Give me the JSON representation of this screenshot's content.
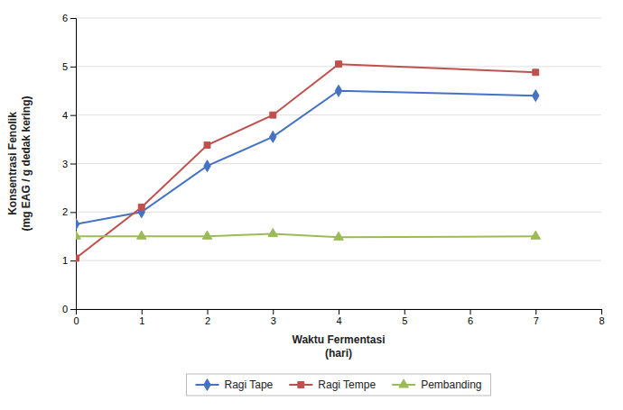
{
  "chart_data": {
    "type": "line",
    "xlabel": "Waktu Fermentasi\n(hari)",
    "ylabel": "Konsentrasi Fenolik\n(mg EAG / g dedak kering)",
    "x": [
      0,
      1,
      2,
      3,
      4,
      7
    ],
    "xlim": [
      0,
      8
    ],
    "ylim": [
      0,
      6
    ],
    "xticks": [
      0,
      1,
      2,
      3,
      4,
      5,
      6,
      7,
      8
    ],
    "yticks": [
      0,
      1,
      2,
      3,
      4,
      5,
      6
    ],
    "grid": "y",
    "legend": "bottom",
    "series": [
      {
        "name": "Ragi Tape",
        "color": "#4472C4",
        "marker": "diamond",
        "values": [
          1.75,
          2.0,
          2.95,
          3.55,
          4.5,
          4.4
        ]
      },
      {
        "name": "Ragi Tempe",
        "color": "#C0504D",
        "marker": "square",
        "values": [
          1.05,
          2.1,
          3.38,
          4.0,
          5.05,
          4.88
        ]
      },
      {
        "name": "Pembanding",
        "color": "#9BBB59",
        "marker": "triangle",
        "values": [
          1.5,
          1.5,
          1.5,
          1.55,
          1.48,
          1.5
        ]
      }
    ]
  }
}
